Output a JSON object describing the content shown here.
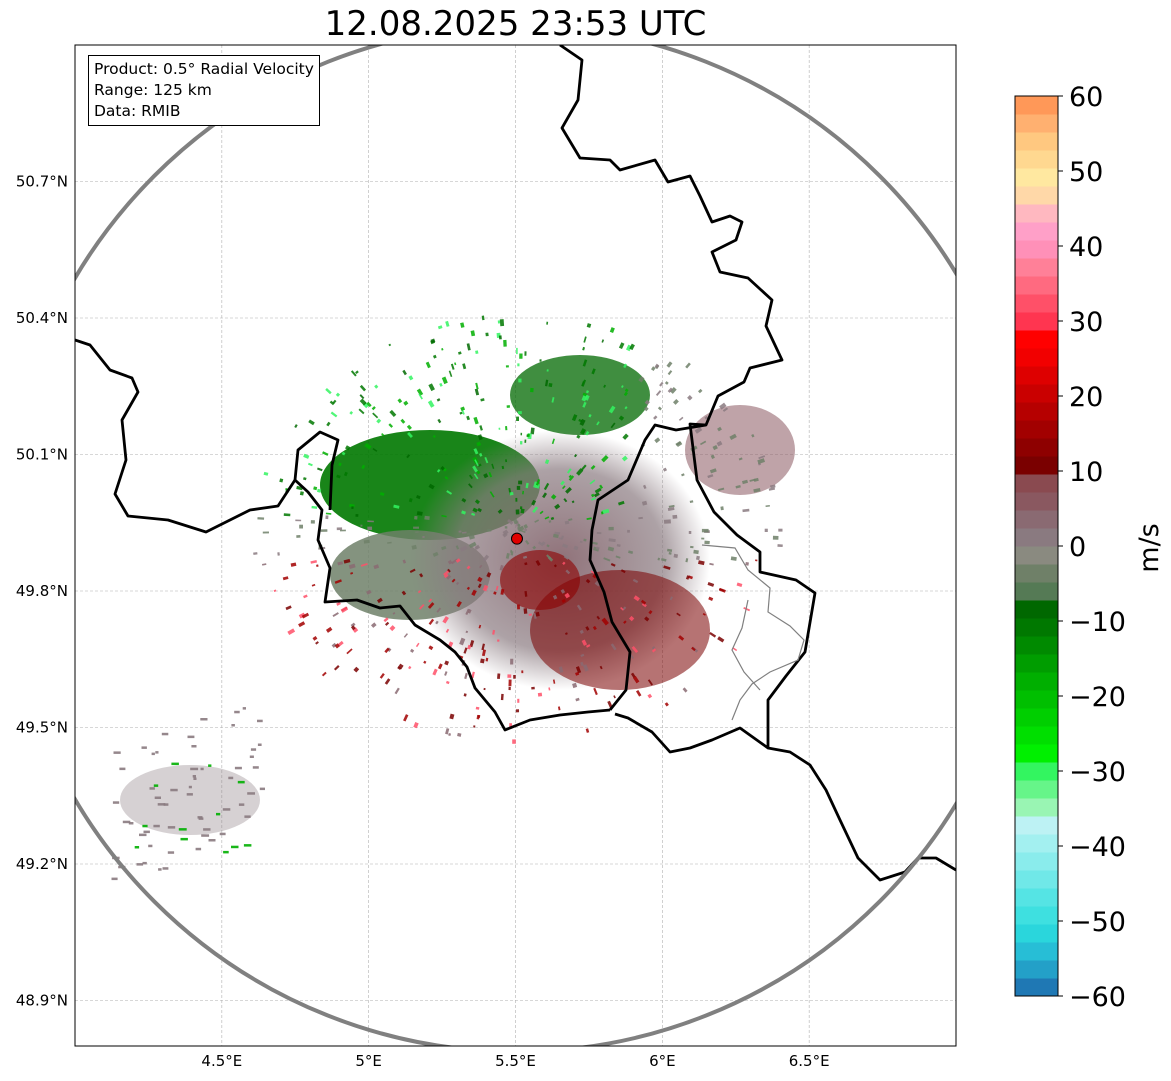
{
  "title": "12.08.2025 23:53 UTC",
  "info_box": {
    "product": "Product: 0.5° Radial Velocity",
    "range": "Range: 125 km",
    "source": "Data: RMIB"
  },
  "map": {
    "lon_range": [
      4.0,
      7.0
    ],
    "lat_range": [
      48.8,
      51.0
    ],
    "lon_ticks": [
      {
        "value": 4.5,
        "label": "4.5°E"
      },
      {
        "value": 5.0,
        "label": "5°E"
      },
      {
        "value": 5.5,
        "label": "5.5°E"
      },
      {
        "value": 6.0,
        "label": "6°E"
      },
      {
        "value": 6.5,
        "label": "6.5°E"
      }
    ],
    "lat_ticks": [
      {
        "value": 50.7,
        "label": "50.7°N"
      },
      {
        "value": 50.4,
        "label": "50.4°N"
      },
      {
        "value": 50.1,
        "label": "50.1°N"
      },
      {
        "value": 49.8,
        "label": "49.8°N"
      },
      {
        "value": 49.5,
        "label": "49.5°N"
      },
      {
        "value": 49.2,
        "label": "49.2°N"
      },
      {
        "value": 48.9,
        "label": "48.9°N"
      }
    ],
    "gridlines": true,
    "radar_site": {
      "lon": 5.505,
      "lat": 49.915,
      "color": "#e00000"
    },
    "range_ring_km": 125,
    "ring_color": "#808080",
    "border_color": "#000000",
    "inner_border_color": "#808080"
  },
  "colorbar": {
    "label": "m/s",
    "min": -60,
    "max": 60,
    "ticks": [
      {
        "value": 60,
        "label": "60"
      },
      {
        "value": 50,
        "label": "50"
      },
      {
        "value": 40,
        "label": "40"
      },
      {
        "value": 30,
        "label": "30"
      },
      {
        "value": 20,
        "label": "20"
      },
      {
        "value": 10,
        "label": "10"
      },
      {
        "value": 0,
        "label": "0"
      },
      {
        "value": -10,
        "label": "−10"
      },
      {
        "value": -20,
        "label": "−20"
      },
      {
        "value": -30,
        "label": "−30"
      },
      {
        "value": -40,
        "label": "−40"
      },
      {
        "value": -50,
        "label": "−50"
      },
      {
        "value": -60,
        "label": "−60"
      }
    ],
    "colors": [
      "#1f78b4",
      "#23a0c8",
      "#27bed6",
      "#2ad6dc",
      "#3ee0e0",
      "#55e4e4",
      "#70e8e8",
      "#8aecec",
      "#a3f0f0",
      "#bdf2f4",
      "#99f5b3",
      "#66f589",
      "#33f560",
      "#00f000",
      "#00df00",
      "#00cf00",
      "#00bf00",
      "#00af00",
      "#009d00",
      "#008a00",
      "#007800",
      "#006800",
      "#557a55",
      "#6f8068",
      "#8a8a80",
      "#8a7a80",
      "#8a6a72",
      "#8a5860",
      "#8a4a50",
      "#7a0000",
      "#8e0000",
      "#a20000",
      "#b60000",
      "#ca0000",
      "#de0000",
      "#f20000",
      "#ff0000",
      "#ff3550",
      "#ff5068",
      "#ff6a80",
      "#ff8098",
      "#ff90b8",
      "#ffa0c8",
      "#ffb8c0",
      "#ffd8a8",
      "#ffe8a0",
      "#ffd890",
      "#ffc880",
      "#ffb070",
      "#ff9858"
    ]
  }
}
